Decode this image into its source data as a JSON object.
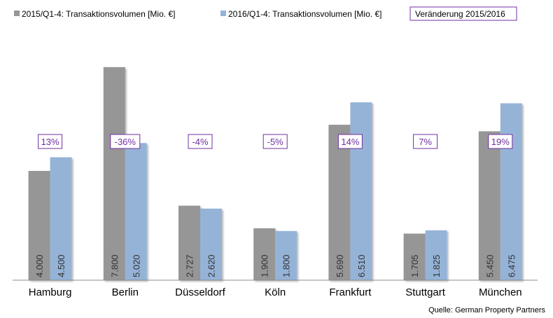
{
  "chart_data": {
    "type": "bar",
    "categories": [
      "Hamburg",
      "Berlin",
      "Düsseldorf",
      "Köln",
      "Frankfurt",
      "Stuttgart",
      "München"
    ],
    "series": [
      {
        "name": "2015/Q1-4:  Transaktionsvolumen  [Mio. €]",
        "color": "#969696",
        "values": [
          4000,
          7800,
          2727,
          1900,
          5690,
          1705,
          5450
        ],
        "labels": [
          "4.000",
          "7.800",
          "2.727",
          "1.900",
          "5.690",
          "1.705",
          "5.450"
        ]
      },
      {
        "name": "2016/Q1-4:  Transaktionsvolumen  [Mio. €]",
        "color": "#95b3d7",
        "values": [
          4500,
          5020,
          2620,
          1800,
          6510,
          1825,
          6475
        ],
        "labels": [
          "4.500",
          "5.020",
          "2.620",
          "1.800",
          "6.510",
          "1.825",
          "6.475"
        ]
      }
    ],
    "change_legend": "Veränderung 2015/2016",
    "changes": [
      "13%",
      "-36%",
      "-4%",
      "-5%",
      "14%",
      "7%",
      "19%"
    ],
    "change_color": "#7030a0",
    "ylim": [
      0,
      8000
    ],
    "grid": false,
    "legend_position": "top",
    "source": "Quelle: German Property Partners"
  }
}
